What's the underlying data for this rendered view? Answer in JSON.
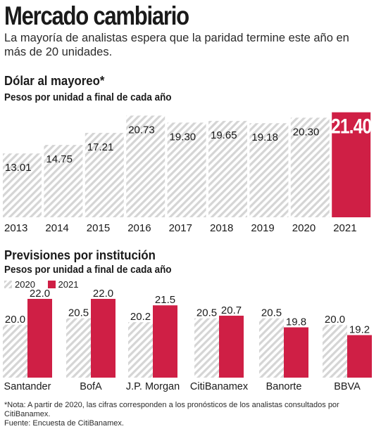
{
  "header": {
    "title": "Mercado cambiario",
    "subtitle": "La mayoría de analistas espera que la paridad termine este año en más de 20 unidades."
  },
  "section1": {
    "heading": "Dólar al mayoreo*",
    "subheading": "Pesos por unidad a final de cada año"
  },
  "section2": {
    "heading": "Previsiones por institución",
    "subheading": "Pesos por unidad a final de cada año"
  },
  "legend": {
    "label_2020": "2020",
    "label_2021": "2021"
  },
  "footnote": {
    "note": "*Nota: A partir de 2020, las cifras corresponden a los pronósticos de los analistas consultados por CitiBanamex.",
    "source": "Fuente: Encuesta de CitiBanamex."
  },
  "colors": {
    "highlight": "#cf1f45",
    "hatch": "#d5d5d5",
    "text": "#1a1a1a"
  },
  "chart_data": [
    {
      "type": "bar",
      "categories": [
        "2013",
        "2014",
        "2015",
        "2016",
        "2017",
        "2018",
        "2019",
        "2020",
        "2021"
      ],
      "values": [
        13.01,
        14.75,
        17.21,
        20.73,
        19.3,
        19.65,
        19.18,
        20.3,
        21.4
      ],
      "labels": [
        "13.01",
        "14.75",
        "17.21",
        "20.73",
        "19.30",
        "19.65",
        "19.18",
        "20.30",
        "21.40"
      ],
      "highlight_index": 8,
      "ylim": [
        0,
        22.5
      ],
      "grid": false
    },
    {
      "type": "bar",
      "categories": [
        "Santander",
        "BofA",
        "J.P. Morgan",
        "CitiBanamex",
        "Banorte",
        "BBVA"
      ],
      "series": [
        {
          "name": "2020",
          "values": [
            20.0,
            20.5,
            20.2,
            20.5,
            20.5,
            20.0
          ],
          "labels": [
            "20.0",
            "20.5",
            "20.2",
            "20.5",
            "20.5",
            "20.0"
          ]
        },
        {
          "name": "2021",
          "values": [
            22.0,
            22.0,
            21.5,
            20.7,
            19.8,
            19.2
          ],
          "labels": [
            "22.0",
            "22.0",
            "21.5",
            "20.7",
            "19.8",
            "19.2"
          ]
        }
      ],
      "ylim": [
        17.0,
        22.5
      ],
      "legend": "top-left",
      "grid": false
    }
  ]
}
